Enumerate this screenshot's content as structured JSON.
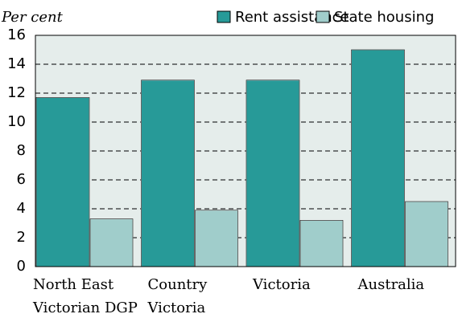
{
  "chart_data": {
    "type": "bar",
    "y_axis_label": "Per cent",
    "categories": [
      [
        "North East",
        "Victorian DGP"
      ],
      [
        "Country",
        "Victoria"
      ],
      [
        "Victoria"
      ],
      [
        "Australia"
      ]
    ],
    "series": [
      {
        "name": "Rent assistance",
        "color": "#279a98",
        "values": [
          11.7,
          12.9,
          12.9,
          15.0
        ]
      },
      {
        "name": "State housing",
        "color": "#a0cdcb",
        "values": [
          3.3,
          3.9,
          3.2,
          4.5
        ]
      }
    ],
    "ylim": [
      0,
      16
    ],
    "yticks": [
      0,
      2,
      4,
      6,
      8,
      10,
      12,
      14,
      16
    ],
    "grid": true
  }
}
